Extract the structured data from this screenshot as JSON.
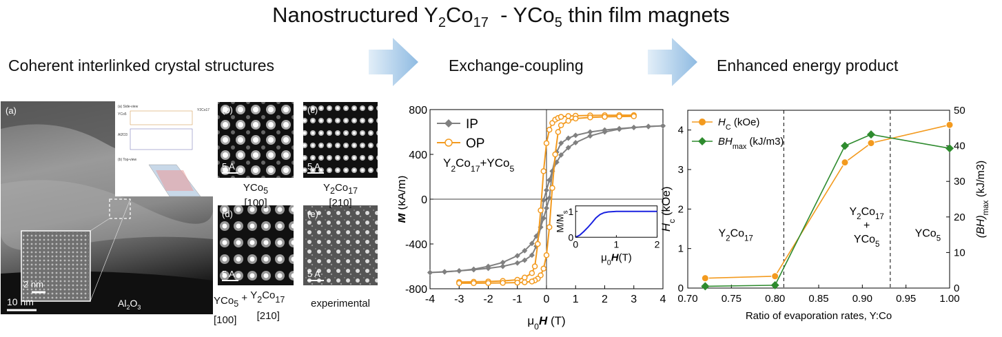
{
  "title": {
    "pre": "Nanostructured Y",
    "s1": "2",
    "mid1": "Co",
    "s2": "17",
    "mid2": "  - YCo",
    "s3": "5",
    "post": " thin film magnets"
  },
  "sections": {
    "left": "Coherent interlinked crystal structures",
    "middle": "Exchange-coupling",
    "right": "Enhanced energy product"
  },
  "colors": {
    "arrow": "#a9cbe8",
    "ip": "#808080",
    "op": "#f39a1e",
    "hc": "#f39a1e",
    "bh": "#2e8b2e",
    "inset": "#1a22e0"
  },
  "tem": {
    "label_a": "(a)",
    "scale_main": "10 nm",
    "substrate": "Al",
    "substrate_sub": "2",
    "substrate_post": "O",
    "substrate_sub2": "3",
    "scale_inset": "2 nm",
    "crystal_inset": {
      "side_view": "(a) Side-view",
      "top_view": "(b) Top-view",
      "yco5": "YCo5",
      "al2o3": "Al2O3",
      "y2co17": "Y2Co17"
    }
  },
  "hrtem": {
    "b": {
      "label": "(b)",
      "scale": "5 A",
      "cap1": "YCo",
      "cap1_sub": "5",
      "cap2": "[100]"
    },
    "c": {
      "label": "(c)",
      "scale": "5 A",
      "cap1": "Y",
      "cap1_sub": "2",
      "cap1_mid": "Co",
      "cap1_sub2": "17",
      "cap2": "[210]"
    },
    "d": {
      "label": "(d)",
      "scale": "5 A",
      "cap_a": "YCo",
      "cap_a_sub": "5",
      "cap_plus": "+",
      "cap_b": "Y",
      "cap_b_sub": "2",
      "cap_b_mid": "Co",
      "cap_b_sub2": "17",
      "cap_a2": "[100]",
      "cap_b2": "[210]"
    },
    "e": {
      "label": "(e)",
      "scale": "5 A",
      "cap": "experimental"
    }
  },
  "chart_data": [
    {
      "type": "line",
      "title": "",
      "xlabel": "μ0H (T)",
      "ylabel": "M (kA/m)",
      "xlim": [
        -4,
        4
      ],
      "ylim": [
        -800,
        800
      ],
      "xticks": [
        "-4",
        "-3",
        "-2",
        "-1",
        "0",
        "1",
        "2",
        "3",
        "4"
      ],
      "yticks": [
        "-800",
        "-400",
        "0",
        "400",
        "800"
      ],
      "legend": "top-left",
      "annotation": "Y2Co17+YCo5",
      "series": [
        {
          "name": "IP",
          "x": [
            -4,
            -3.5,
            -3,
            -2.5,
            -2,
            -1.5,
            -1,
            -0.75,
            -0.5,
            -0.35,
            -0.2,
            -0.1,
            0,
            0.1,
            0.2,
            0.35,
            0.5,
            0.75,
            1,
            1.5,
            2,
            2.5,
            3,
            3.5,
            4
          ],
          "y": [
            -655,
            -650,
            -640,
            -625,
            -600,
            -565,
            -505,
            -460,
            -395,
            -330,
            -250,
            -170,
            -80,
            10,
            250,
            420,
            500,
            545,
            570,
            600,
            618,
            630,
            640,
            648,
            655
          ]
        },
        {
          "name": "OP",
          "x": [
            -3,
            -2.5,
            -2,
            -1.5,
            -1,
            -0.75,
            -0.5,
            -0.4,
            -0.3,
            -0.2,
            -0.1,
            0,
            0.1,
            0.2,
            0.3,
            0.4,
            0.5,
            0.75,
            1,
            1.5,
            2,
            2.5,
            3
          ],
          "y": [
            -740,
            -738,
            -735,
            -730,
            -720,
            -700,
            -660,
            -600,
            -400,
            -100,
            250,
            500,
            620,
            680,
            710,
            725,
            735,
            742,
            745,
            748,
            749,
            750,
            750
          ]
        }
      ],
      "inset": {
        "xlabel": "μ0H (T)",
        "ylabel": "M/Ms",
        "xlim": [
          0,
          2
        ],
        "ylim": [
          0,
          1
        ],
        "xticks": [
          "0",
          "1",
          "2"
        ],
        "yticks": [
          "0",
          "1"
        ],
        "x": [
          0,
          0.1,
          0.2,
          0.3,
          0.4,
          0.5,
          0.6,
          0.7,
          0.8,
          0.9,
          1,
          1.2,
          1.5,
          2
        ],
        "y": [
          0,
          0.08,
          0.22,
          0.38,
          0.56,
          0.75,
          0.88,
          0.95,
          0.98,
          0.99,
          1,
          1,
          1,
          1
        ]
      }
    },
    {
      "type": "line",
      "title": "",
      "xlabel": "Ratio of evaporation rates, Y:Co",
      "ylabel": "Hc (kOe)",
      "y2label": "(BH)max (kJ/m3)",
      "xlim": [
        0.7,
        1.0
      ],
      "ylim": [
        0,
        4.5
      ],
      "y2lim": [
        0,
        50
      ],
      "xticks": [
        "0.70",
        "0.75",
        "0.80",
        "0.85",
        "0.90",
        "0.95",
        "1.00"
      ],
      "yticks": [
        "0",
        "1",
        "2",
        "3",
        "4"
      ],
      "y2ticks": [
        "0",
        "10",
        "20",
        "30",
        "40",
        "50"
      ],
      "vlines": [
        0.81,
        0.932
      ],
      "legend": "top-left",
      "regions": {
        "left": "Y2Co17",
        "middle_a": "Y2Co17",
        "middle_plus": "+",
        "middle_b": "YCo5",
        "right": "YCo5"
      },
      "series": [
        {
          "name": "Hc (kOe)",
          "axis": "left",
          "x": [
            0.72,
            0.8,
            0.88,
            0.91,
            1.0
          ],
          "y": [
            0.25,
            0.3,
            3.18,
            3.67,
            4.13
          ]
        },
        {
          "name": "BHmax (kJ/m3)",
          "axis": "right",
          "x": [
            0.72,
            0.8,
            0.88,
            0.91,
            1.0
          ],
          "y": [
            0.5,
            0.8,
            40.0,
            43.2,
            39.3
          ]
        }
      ]
    }
  ]
}
